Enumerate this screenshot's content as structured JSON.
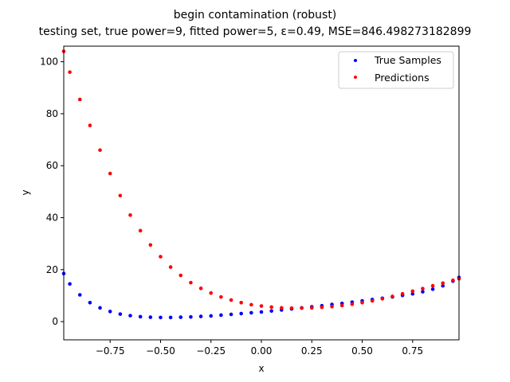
{
  "chart_data": {
    "type": "scatter",
    "title": "begin contamination (robust)",
    "subtitle": "testing set, true power=9, fitted power=5, ε=0.49, MSE=846.498273182899",
    "xlabel": "x",
    "ylabel": "y",
    "xlim": [
      -0.98,
      0.98
    ],
    "ylim": [
      -7,
      106
    ],
    "x_ticks": [
      -0.75,
      -0.5,
      -0.25,
      0.0,
      0.25,
      0.5,
      0.75
    ],
    "x_tick_labels": [
      "−0.75",
      "−0.50",
      "−0.25",
      "0.00",
      "0.25",
      "0.50",
      "0.75"
    ],
    "y_ticks": [
      0,
      20,
      40,
      60,
      80,
      100
    ],
    "y_tick_labels": [
      "0",
      "20",
      "40",
      "60",
      "80",
      "100"
    ],
    "grid": false,
    "legend_position": "top-right",
    "series": [
      {
        "name": "True Samples",
        "color": "#0000ff",
        "x": [
          -0.98,
          -0.95,
          -0.9,
          -0.85,
          -0.8,
          -0.75,
          -0.7,
          -0.65,
          -0.6,
          -0.55,
          -0.5,
          -0.45,
          -0.4,
          -0.35,
          -0.3,
          -0.25,
          -0.2,
          -0.15,
          -0.1,
          -0.05,
          0.0,
          0.05,
          0.1,
          0.15,
          0.2,
          0.25,
          0.3,
          0.35,
          0.4,
          0.45,
          0.5,
          0.55,
          0.6,
          0.65,
          0.7,
          0.75,
          0.8,
          0.85,
          0.9,
          0.95,
          0.98
        ],
        "y": [
          18.5,
          14.5,
          10.3,
          7.3,
          5.3,
          3.9,
          2.9,
          2.3,
          1.9,
          1.7,
          1.6,
          1.6,
          1.7,
          1.8,
          2.0,
          2.2,
          2.5,
          2.8,
          3.1,
          3.4,
          3.7,
          4.1,
          4.5,
          4.9,
          5.3,
          5.7,
          6.1,
          6.6,
          7.0,
          7.5,
          8.0,
          8.5,
          9.0,
          9.5,
          10.1,
          10.7,
          11.5,
          12.5,
          13.8,
          15.6,
          17.0
        ]
      },
      {
        "name": "Predictions",
        "color": "#ff0000",
        "x": [
          -0.98,
          -0.95,
          -0.9,
          -0.85,
          -0.8,
          -0.75,
          -0.7,
          -0.65,
          -0.6,
          -0.55,
          -0.5,
          -0.45,
          -0.4,
          -0.35,
          -0.3,
          -0.25,
          -0.2,
          -0.15,
          -0.1,
          -0.05,
          0.0,
          0.05,
          0.1,
          0.15,
          0.2,
          0.25,
          0.3,
          0.35,
          0.4,
          0.45,
          0.5,
          0.55,
          0.6,
          0.65,
          0.7,
          0.75,
          0.8,
          0.85,
          0.9,
          0.95,
          0.98
        ],
        "y": [
          104.0,
          96.0,
          85.5,
          75.5,
          66.0,
          57.0,
          48.5,
          41.0,
          35.0,
          29.5,
          25.0,
          21.0,
          17.8,
          15.0,
          12.8,
          11.0,
          9.5,
          8.3,
          7.3,
          6.5,
          6.0,
          5.6,
          5.3,
          5.2,
          5.2,
          5.3,
          5.5,
          5.8,
          6.2,
          6.7,
          7.3,
          8.0,
          8.8,
          9.7,
          10.7,
          11.7,
          12.7,
          13.8,
          14.8,
          15.9,
          16.5
        ]
      }
    ]
  }
}
